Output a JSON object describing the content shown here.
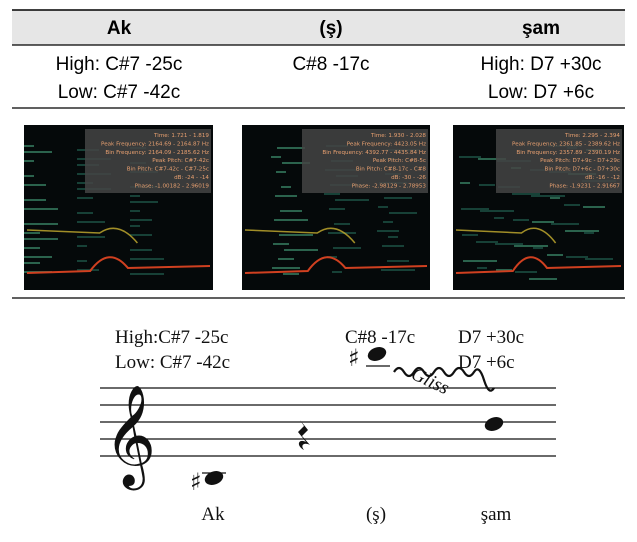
{
  "table": {
    "header": [
      "Ak",
      "(ş)",
      "şam"
    ],
    "pitch_row": [
      [
        "High: C#7 -25c",
        "Low: C#7 -42c"
      ],
      [
        "C#8 -17c"
      ],
      [
        "High: D7 +30c",
        "Low: D7 +6c"
      ]
    ],
    "spectrograms": [
      {
        "lines": [
          "Time: 1.721 - 1.819",
          "Peak Frequency: 2164.69 - 2164.87 Hz",
          "Bin Frequency: 2164.09 - 2185.62 Hz",
          "Peak Pitch: C#7-42c",
          "Bin Pitch: C#7-42c - C#7-25c",
          "dB: -24 - -14",
          "Phase: -1.00182 - 2.96019"
        ]
      },
      {
        "lines": [
          "Time: 1.930 - 2.028",
          "Peak Frequency: 4423.05 Hz",
          "Bin Frequency: 4392.77 - 4435.84 Hz",
          "Peak Pitch: C#8-5c",
          "Bin Pitch: C#8-17c - C#8",
          "dB: -30 - -26",
          "Phase: -2.98129 - 2.78953"
        ]
      },
      {
        "lines": [
          "Time: 2.295 - 2.394",
          "Peak Frequency: 2361.85 - 2389.62 Hz",
          "Bin Frequency: 2357.89 - 2390.19 Hz",
          "Peak Pitch: D7+9c - D7+29c",
          "Bin Pitch: D7+6c - D7+30c",
          "dB: -16 - -12",
          "Phase: -1.9231 - 2.91667"
        ]
      }
    ]
  },
  "notation": {
    "annotations": [
      "High:C#7 -25c",
      "Low: C#7 -42c",
      "C#8 -17c",
      "D7 +30c",
      "D7 +6c"
    ],
    "gliss": "Gliss",
    "syllables": [
      "Ak",
      "(ş)",
      "şam"
    ]
  }
}
